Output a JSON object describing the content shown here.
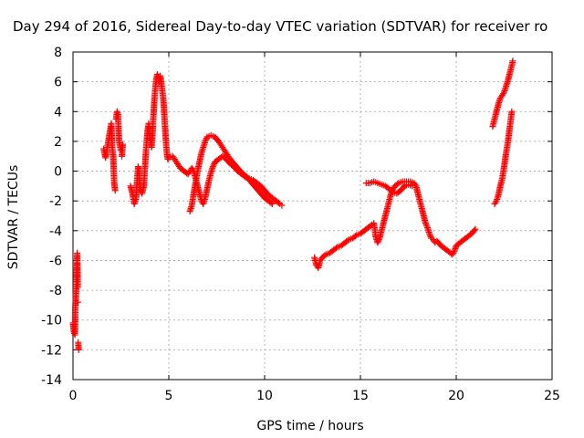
{
  "chart_data": {
    "type": "scatter",
    "title": "Day 294 of 2016, Sidereal Day-to-day VTEC variation (SDTVAR) for receiver ro",
    "xlabel": "GPS time / hours",
    "ylabel": "SDTVAR / TECUs",
    "xlim": [
      0,
      25
    ],
    "ylim": [
      -14,
      8
    ],
    "xticks": [
      0,
      5,
      10,
      15,
      20,
      25
    ],
    "yticks": [
      -14,
      -12,
      -10,
      -8,
      -6,
      -4,
      -2,
      0,
      2,
      4,
      6,
      8
    ],
    "grid": true,
    "marker": "+",
    "color": "#ff0000",
    "series": [
      {
        "segments": [
          [
            [
              0.0,
              -10.2
            ],
            [
              0.05,
              -10.8
            ],
            [
              0.1,
              -11.0
            ],
            [
              0.12,
              -9.2
            ],
            [
              0.15,
              -8.5
            ],
            [
              0.18,
              -7.5
            ],
            [
              0.2,
              -6.5
            ],
            [
              0.22,
              -5.5
            ],
            [
              0.25,
              -7.8
            ],
            [
              0.27,
              -11.5
            ],
            [
              0.3,
              -12.0
            ],
            [
              0.25,
              -8.8
            ]
          ],
          [
            [
              1.6,
              1.5
            ],
            [
              1.7,
              0.9
            ],
            [
              2.0,
              3.2
            ],
            [
              2.05,
              1.6
            ],
            [
              2.1,
              1.0
            ],
            [
              2.15,
              -0.8
            ],
            [
              2.2,
              -1.3
            ],
            [
              2.25,
              3.5
            ],
            [
              2.3,
              4.0
            ],
            [
              2.35,
              3.8
            ],
            [
              2.4,
              2.0
            ],
            [
              2.5,
              1.4
            ],
            [
              2.6,
              1.8
            ],
            [
              2.55,
              1.0
            ]
          ],
          [
            [
              3.0,
              -1.0
            ],
            [
              3.1,
              -1.5
            ],
            [
              3.2,
              -2.2
            ],
            [
              3.3,
              -1.8
            ],
            [
              3.35,
              -0.5
            ],
            [
              3.4,
              0.3
            ],
            [
              3.45,
              0.0
            ],
            [
              3.5,
              -1.2
            ],
            [
              3.6,
              -1.5
            ],
            [
              3.7,
              -1.0
            ],
            [
              3.8,
              1.2
            ],
            [
              3.85,
              2.0
            ],
            [
              3.9,
              2.8
            ],
            [
              3.95,
              3.2
            ],
            [
              4.0,
              2.5
            ],
            [
              4.05,
              2.0
            ],
            [
              4.1,
              1.6
            ],
            [
              4.15,
              2.5
            ],
            [
              4.2,
              3.8
            ],
            [
              4.25,
              4.8
            ],
            [
              4.3,
              5.6
            ],
            [
              4.35,
              6.2
            ],
            [
              4.4,
              6.5
            ],
            [
              4.45,
              6.3
            ],
            [
              4.5,
              6.0
            ],
            [
              4.55,
              6.4
            ],
            [
              4.6,
              6.0
            ],
            [
              4.65,
              5.5
            ],
            [
              4.7,
              5.0
            ],
            [
              4.75,
              4.2
            ],
            [
              4.8,
              3.0
            ],
            [
              4.85,
              2.0
            ],
            [
              4.9,
              1.2
            ],
            [
              4.95,
              0.8
            ],
            [
              5.0,
              0.9
            ],
            [
              5.2,
              1.0
            ],
            [
              5.4,
              0.6
            ],
            [
              5.6,
              0.2
            ],
            [
              5.8,
              0.0
            ],
            [
              6.0,
              -0.2
            ],
            [
              6.2,
              0.2
            ],
            [
              6.3,
              0.0
            ],
            [
              6.4,
              -0.5
            ],
            [
              6.5,
              -1.0
            ],
            [
              6.6,
              -1.5
            ],
            [
              6.7,
              -2.0
            ],
            [
              6.8,
              -2.2
            ],
            [
              6.9,
              -1.8
            ],
            [
              7.0,
              -1.2
            ],
            [
              7.1,
              -0.6
            ],
            [
              7.2,
              -0.1
            ],
            [
              7.3,
              0.3
            ],
            [
              7.4,
              0.6
            ],
            [
              7.6,
              0.8
            ],
            [
              7.8,
              1.0
            ],
            [
              8.0,
              0.8
            ],
            [
              8.2,
              0.5
            ],
            [
              8.4,
              0.3
            ],
            [
              8.6,
              0.0
            ],
            [
              8.8,
              -0.2
            ],
            [
              9.0,
              -0.4
            ],
            [
              9.2,
              -0.5
            ],
            [
              9.4,
              -0.6
            ],
            [
              9.6,
              -0.8
            ],
            [
              9.8,
              -1.0
            ],
            [
              10.0,
              -1.3
            ],
            [
              10.2,
              -1.6
            ],
            [
              10.4,
              -1.8
            ],
            [
              10.6,
              -2.0
            ],
            [
              10.8,
              -2.2
            ],
            [
              10.9,
              -2.3
            ]
          ],
          [
            [
              6.1,
              -2.7
            ],
            [
              6.2,
              -2.3
            ],
            [
              6.3,
              -1.5
            ],
            [
              6.4,
              -0.8
            ],
            [
              6.5,
              0.0
            ],
            [
              6.6,
              0.6
            ],
            [
              6.7,
              1.2
            ],
            [
              6.8,
              1.6
            ],
            [
              6.9,
              2.0
            ],
            [
              7.0,
              2.3
            ],
            [
              7.2,
              2.4
            ],
            [
              7.4,
              2.3
            ],
            [
              7.6,
              2.0
            ],
            [
              7.8,
              1.6
            ],
            [
              8.0,
              1.2
            ],
            [
              8.2,
              0.8
            ],
            [
              8.4,
              0.5
            ],
            [
              8.6,
              0.2
            ],
            [
              8.8,
              -0.1
            ],
            [
              9.0,
              -0.3
            ],
            [
              9.2,
              -0.6
            ],
            [
              9.4,
              -0.9
            ],
            [
              9.6,
              -1.2
            ],
            [
              9.8,
              -1.5
            ],
            [
              10.0,
              -1.8
            ],
            [
              10.2,
              -2.0
            ],
            [
              10.4,
              -2.2
            ]
          ],
          [
            [
              12.6,
              -5.8
            ],
            [
              12.7,
              -6.3
            ],
            [
              12.8,
              -6.5
            ],
            [
              12.9,
              -6.0
            ],
            [
              13.0,
              -5.8
            ],
            [
              13.2,
              -5.6
            ],
            [
              13.4,
              -5.5
            ],
            [
              13.6,
              -5.3
            ],
            [
              13.8,
              -5.1
            ],
            [
              14.0,
              -5.0
            ],
            [
              14.2,
              -4.8
            ],
            [
              14.4,
              -4.6
            ],
            [
              14.6,
              -4.5
            ],
            [
              14.8,
              -4.3
            ],
            [
              15.0,
              -4.2
            ],
            [
              15.2,
              -4.0
            ],
            [
              15.4,
              -3.8
            ],
            [
              15.6,
              -3.6
            ],
            [
              15.7,
              -3.5
            ],
            [
              15.8,
              -4.4
            ],
            [
              15.9,
              -4.8
            ],
            [
              16.0,
              -4.5
            ],
            [
              16.1,
              -4.0
            ],
            [
              16.2,
              -3.5
            ],
            [
              16.3,
              -3.0
            ],
            [
              16.4,
              -2.5
            ],
            [
              16.5,
              -2.0
            ],
            [
              16.6,
              -1.5
            ],
            [
              16.7,
              -1.2
            ],
            [
              16.8,
              -1.0
            ],
            [
              17.0,
              -0.8
            ],
            [
              17.2,
              -0.7
            ],
            [
              17.4,
              -0.7
            ],
            [
              17.6,
              -0.7
            ],
            [
              17.8,
              -0.8
            ],
            [
              17.9,
              -1.0
            ],
            [
              18.0,
              -1.5
            ],
            [
              18.1,
              -2.0
            ],
            [
              18.2,
              -2.5
            ],
            [
              18.3,
              -3.0
            ],
            [
              18.4,
              -3.5
            ],
            [
              18.5,
              -3.8
            ],
            [
              18.6,
              -4.2
            ],
            [
              18.7,
              -4.5
            ],
            [
              18.8,
              -4.6
            ],
            [
              18.9,
              -4.8
            ],
            [
              19.0,
              -4.7
            ],
            [
              19.2,
              -5.0
            ],
            [
              19.4,
              -5.2
            ],
            [
              19.6,
              -5.4
            ],
            [
              19.8,
              -5.6
            ],
            [
              19.9,
              -5.4
            ],
            [
              20.0,
              -5.0
            ],
            [
              20.2,
              -4.8
            ],
            [
              20.4,
              -4.6
            ],
            [
              20.6,
              -4.4
            ],
            [
              20.8,
              -4.2
            ],
            [
              21.0,
              -3.9
            ]
          ],
          [
            [
              15.3,
              -0.8
            ],
            [
              15.5,
              -0.8
            ],
            [
              15.7,
              -0.7
            ],
            [
              15.9,
              -0.8
            ],
            [
              16.1,
              -0.9
            ],
            [
              16.3,
              -1.0
            ],
            [
              16.5,
              -1.2
            ],
            [
              16.7,
              -1.4
            ],
            [
              16.9,
              -1.5
            ],
            [
              17.1,
              -1.3
            ],
            [
              17.3,
              -1.0
            ],
            [
              17.5,
              -0.9
            ],
            [
              17.7,
              -1.0
            ]
          ],
          [
            [
              22.0,
              -2.2
            ],
            [
              22.1,
              -2.0
            ],
            [
              22.2,
              -1.6
            ],
            [
              22.3,
              -1.0
            ],
            [
              22.4,
              -0.5
            ],
            [
              22.5,
              0.3
            ],
            [
              22.6,
              1.2
            ],
            [
              22.7,
              2.0
            ],
            [
              22.8,
              3.0
            ],
            [
              22.9,
              4.0
            ]
          ],
          [
            [
              21.9,
              3.0
            ],
            [
              22.0,
              3.5
            ],
            [
              22.1,
              4.0
            ],
            [
              22.2,
              4.5
            ],
            [
              22.3,
              4.9
            ],
            [
              22.4,
              5.1
            ],
            [
              22.5,
              5.3
            ],
            [
              22.6,
              5.7
            ],
            [
              22.7,
              6.1
            ],
            [
              22.8,
              6.6
            ],
            [
              22.9,
              7.1
            ],
            [
              22.95,
              7.4
            ]
          ]
        ]
      }
    ]
  }
}
